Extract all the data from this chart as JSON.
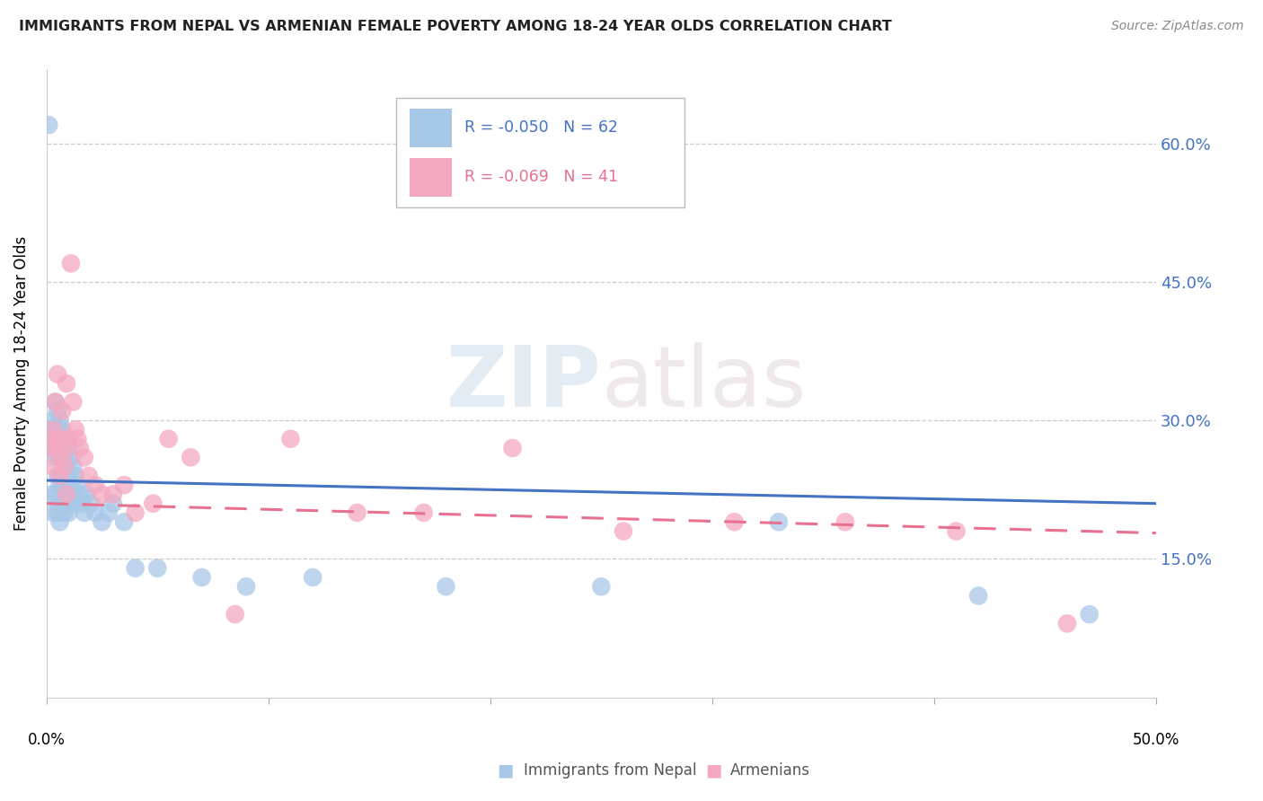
{
  "title": "IMMIGRANTS FROM NEPAL VS ARMENIAN FEMALE POVERTY AMONG 18-24 YEAR OLDS CORRELATION CHART",
  "source": "Source: ZipAtlas.com",
  "ylabel": "Female Poverty Among 18-24 Year Olds",
  "xmin": 0.0,
  "xmax": 0.5,
  "ymin": 0.0,
  "ymax": 0.68,
  "yticks": [
    0.15,
    0.3,
    0.45,
    0.6
  ],
  "ytick_labels": [
    "15.0%",
    "30.0%",
    "45.0%",
    "60.0%"
  ],
  "nepal_color": "#a8c8e8",
  "armenian_color": "#f4a8c0",
  "nepal_line_color": "#4472c4",
  "armenian_line_color": "#e87090",
  "legend_R_nepal": "-0.050",
  "legend_N_nepal": "62",
  "legend_R_armenian": "-0.069",
  "legend_N_armenian": "41",
  "nepal_scatter_x": [
    0.001,
    0.002,
    0.002,
    0.002,
    0.003,
    0.003,
    0.003,
    0.004,
    0.004,
    0.004,
    0.004,
    0.005,
    0.005,
    0.005,
    0.005,
    0.005,
    0.006,
    0.006,
    0.006,
    0.006,
    0.006,
    0.007,
    0.007,
    0.007,
    0.007,
    0.008,
    0.008,
    0.008,
    0.008,
    0.009,
    0.009,
    0.009,
    0.01,
    0.01,
    0.01,
    0.011,
    0.011,
    0.012,
    0.012,
    0.013,
    0.013,
    0.014,
    0.015,
    0.016,
    0.017,
    0.018,
    0.02,
    0.022,
    0.025,
    0.028,
    0.03,
    0.035,
    0.04,
    0.05,
    0.07,
    0.09,
    0.12,
    0.18,
    0.25,
    0.33,
    0.42,
    0.47
  ],
  "nepal_scatter_y": [
    0.62,
    0.29,
    0.27,
    0.22,
    0.3,
    0.27,
    0.2,
    0.32,
    0.28,
    0.26,
    0.22,
    0.31,
    0.29,
    0.27,
    0.24,
    0.2,
    0.3,
    0.28,
    0.26,
    0.23,
    0.19,
    0.29,
    0.27,
    0.24,
    0.21,
    0.28,
    0.26,
    0.23,
    0.2,
    0.28,
    0.25,
    0.21,
    0.27,
    0.24,
    0.2,
    0.26,
    0.23,
    0.25,
    0.22,
    0.24,
    0.21,
    0.23,
    0.22,
    0.21,
    0.2,
    0.22,
    0.21,
    0.2,
    0.19,
    0.2,
    0.21,
    0.19,
    0.14,
    0.14,
    0.13,
    0.12,
    0.13,
    0.12,
    0.12,
    0.19,
    0.11,
    0.09
  ],
  "armenian_scatter_x": [
    0.002,
    0.003,
    0.003,
    0.004,
    0.004,
    0.005,
    0.005,
    0.006,
    0.006,
    0.007,
    0.007,
    0.008,
    0.008,
    0.009,
    0.009,
    0.01,
    0.011,
    0.012,
    0.013,
    0.014,
    0.015,
    0.017,
    0.019,
    0.022,
    0.025,
    0.03,
    0.035,
    0.04,
    0.048,
    0.055,
    0.065,
    0.085,
    0.11,
    0.14,
    0.17,
    0.21,
    0.26,
    0.31,
    0.36,
    0.41,
    0.46
  ],
  "armenian_scatter_y": [
    0.27,
    0.29,
    0.25,
    0.32,
    0.28,
    0.35,
    0.27,
    0.28,
    0.24,
    0.31,
    0.26,
    0.27,
    0.25,
    0.34,
    0.22,
    0.28,
    0.47,
    0.32,
    0.29,
    0.28,
    0.27,
    0.26,
    0.24,
    0.23,
    0.22,
    0.22,
    0.23,
    0.2,
    0.21,
    0.28,
    0.26,
    0.09,
    0.28,
    0.2,
    0.2,
    0.27,
    0.18,
    0.19,
    0.19,
    0.18,
    0.08
  ],
  "watermark_zip": "ZIP",
  "watermark_atlas": "atlas",
  "background_color": "#ffffff",
  "grid_color": "#cccccc",
  "legend_label_nepal": "Immigrants from Nepal",
  "legend_label_armenian": "Armenians"
}
